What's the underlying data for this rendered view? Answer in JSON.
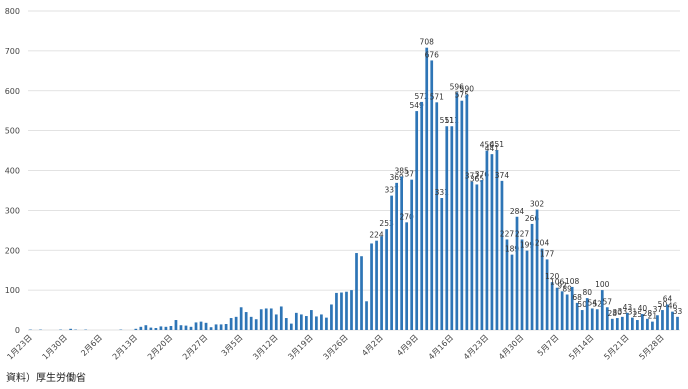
{
  "chart_data": {
    "type": "bar",
    "source": "資料）厚生労働省",
    "color": "#2e75b6",
    "grid": true,
    "ylim": [
      0,
      800
    ],
    "yticks": [
      0,
      100,
      200,
      300,
      400,
      500,
      600,
      700,
      800
    ],
    "categories": [
      "1月23日",
      null,
      null,
      null,
      null,
      null,
      null,
      "1月30日",
      null,
      null,
      null,
      null,
      null,
      null,
      "2月6日",
      null,
      null,
      null,
      null,
      null,
      null,
      "2月13日",
      null,
      null,
      null,
      null,
      null,
      null,
      "2月20日",
      null,
      null,
      null,
      null,
      null,
      null,
      "2月27日",
      null,
      null,
      null,
      null,
      null,
      null,
      "3月5日",
      null,
      null,
      null,
      null,
      null,
      null,
      "3月12日",
      null,
      null,
      null,
      null,
      null,
      null,
      "3月19日",
      null,
      null,
      null,
      null,
      null,
      null,
      "3月26日",
      null,
      null,
      null,
      null,
      null,
      null,
      "4月2日",
      null,
      null,
      null,
      null,
      null,
      null,
      "4月9日",
      null,
      null,
      null,
      null,
      null,
      null,
      "4月16日",
      null,
      null,
      null,
      null,
      null,
      null,
      "4月23日",
      null,
      null,
      null,
      null,
      null,
      null,
      "4月30日",
      null,
      null,
      null,
      null,
      null,
      null,
      "5月7日",
      null,
      null,
      null,
      null,
      null,
      null,
      "5月14日",
      null,
      null,
      null,
      null,
      null,
      null,
      "5月21日",
      null,
      null,
      null,
      null,
      null,
      null,
      "5月28日",
      null,
      null,
      null
    ],
    "values": [
      1,
      0,
      1,
      0,
      0,
      0,
      1,
      0,
      3,
      1,
      0,
      1,
      0,
      0,
      0,
      0,
      0,
      0,
      1,
      0,
      0,
      3,
      8,
      12,
      6,
      5,
      9,
      8,
      10,
      25,
      12,
      11,
      8,
      19,
      21,
      18,
      7,
      14,
      14,
      15,
      30,
      33,
      57,
      45,
      33,
      27,
      52,
      54,
      54,
      39,
      59,
      30,
      16,
      43,
      39,
      35,
      50,
      34,
      39,
      31,
      64,
      93,
      94,
      96,
      100,
      193,
      185,
      72,
      217,
      224,
      235,
      253,
      337,
      369,
      385,
      270,
      377,
      549,
      572,
      708,
      676,
      571,
      331,
      511,
      511,
      596,
      575,
      590,
      372,
      365,
      376,
      450,
      441,
      451,
      374,
      227,
      189,
      284,
      227,
      199,
      266,
      302,
      204,
      177,
      120,
      106,
      97,
      89,
      108,
      68,
      50,
      80,
      54,
      52,
      100,
      57,
      28,
      30,
      33,
      43,
      31,
      25,
      40,
      28,
      21,
      37,
      50,
      64,
      46,
      33
    ],
    "value_labels": [
      null,
      null,
      null,
      null,
      null,
      null,
      null,
      null,
      null,
      null,
      null,
      null,
      null,
      null,
      null,
      null,
      null,
      null,
      null,
      null,
      null,
      null,
      null,
      null,
      null,
      null,
      null,
      null,
      null,
      null,
      null,
      null,
      null,
      null,
      null,
      null,
      null,
      null,
      null,
      null,
      null,
      null,
      null,
      null,
      null,
      null,
      null,
      null,
      null,
      null,
      null,
      null,
      null,
      null,
      null,
      null,
      null,
      null,
      null,
      null,
      null,
      null,
      null,
      null,
      null,
      null,
      null,
      null,
      null,
      "224",
      null,
      "253",
      "337",
      "369",
      "385",
      "270",
      "377",
      "549",
      "572",
      "708",
      "676",
      "571",
      "331",
      "511",
      "511",
      "596",
      "575",
      "590",
      "372",
      "365",
      "376",
      "450",
      "441",
      "451",
      "374",
      "227",
      "189",
      "284",
      "227",
      "199",
      "266",
      "302",
      "204",
      "177",
      "120",
      "106",
      "97",
      "89",
      "108",
      "68",
      "50",
      "80",
      "54",
      "52",
      "100",
      "57",
      "28",
      "30",
      "33",
      "43",
      "31",
      "25",
      "40",
      "28",
      "21",
      "37",
      "50",
      "64",
      "46",
      "33"
    ]
  }
}
